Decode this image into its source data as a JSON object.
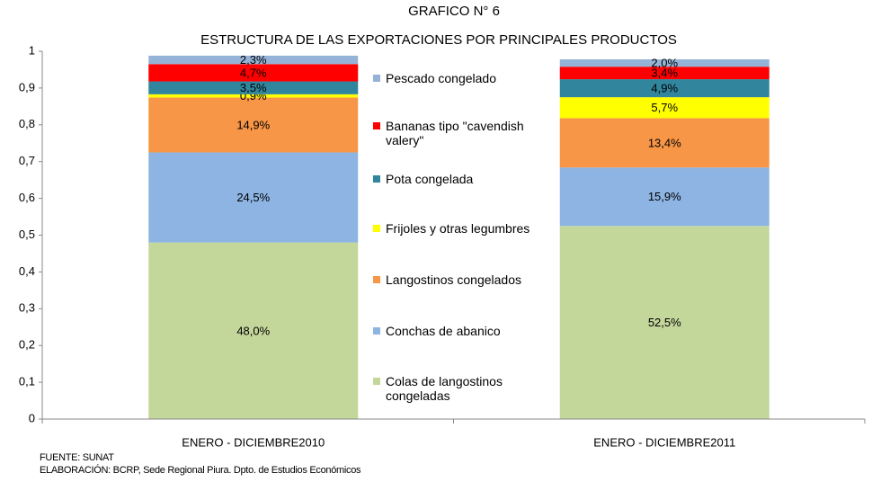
{
  "chart_data": {
    "type": "stacked_bar",
    "title": "GRAFICO N° 6",
    "subtitle": "ESTRUCTURA DE LAS EXPORTACIONES POR PRINCIPALES PRODUCTOS",
    "categories": [
      "ENERO - DICIEMBRE2010",
      "ENERO - DICIEMBRE2011"
    ],
    "ylim": [
      0,
      1
    ],
    "yticks": [
      0,
      {
        "value": 0.1,
        "label": "0,1"
      },
      {
        "value": 0.2,
        "label": "0,2"
      },
      {
        "value": 0.3,
        "label": "0,3"
      },
      {
        "value": 0.4,
        "label": "0,4"
      },
      {
        "value": 0.5,
        "label": "0,5"
      },
      {
        "value": 0.6,
        "label": "0,6"
      },
      {
        "value": 0.7,
        "label": "0,7"
      },
      {
        "value": 0.8,
        "label": "0,8"
      },
      {
        "value": 0.9,
        "label": "0,9"
      },
      1
    ],
    "series": [
      {
        "name": "Colas de langostinos congeladas",
        "color": "#c4d79b",
        "values": [
          0.48,
          0.525
        ],
        "value_labels": [
          "48,0%",
          "52,5%"
        ]
      },
      {
        "name": "Conchas de abanico",
        "color": "#8db4e2",
        "values": [
          0.245,
          0.159
        ],
        "value_labels": [
          "24,5%",
          "15,9%"
        ]
      },
      {
        "name": "Langostinos congelados",
        "color": "#f79646",
        "values": [
          0.149,
          0.134
        ],
        "value_labels": [
          "14,9%",
          "13,4%"
        ]
      },
      {
        "name": "Frijoles y otras legumbres",
        "color": "#ffff00",
        "values": [
          0.009,
          0.057
        ],
        "value_labels": [
          "0,9%",
          "5,7%"
        ]
      },
      {
        "name": "Pota congelada",
        "color": "#31859c",
        "values": [
          0.035,
          0.049
        ],
        "value_labels": [
          "3,5%",
          "4,9%"
        ]
      },
      {
        "name": "Bananas tipo \"cavendish valery\"",
        "color": "#ff0000",
        "values": [
          0.047,
          0.034
        ],
        "value_labels": [
          "4,7%",
          "3,4%"
        ]
      },
      {
        "name": "Pescado congelado",
        "color": "#95b3d7",
        "values": [
          0.023,
          0.02
        ],
        "value_labels": [
          "2,3%",
          "2,0%"
        ]
      }
    ],
    "legend": "center",
    "source": "FUENTE: SUNAT",
    "note": "ELABORACIÓN: BCRP, Sede Regional Piura. Dpto. de Estudios Económicos"
  }
}
